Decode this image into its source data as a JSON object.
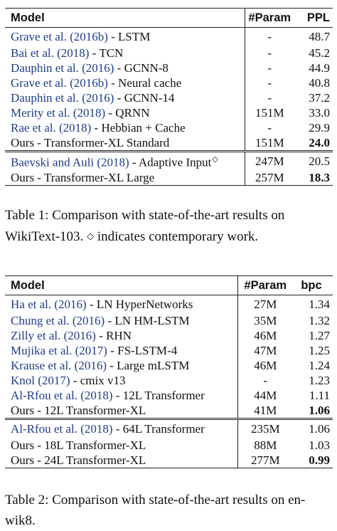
{
  "table1": {
    "headers": {
      "model": "Model",
      "param": "#Param",
      "metric": "PPL"
    },
    "group1": [
      {
        "cite": "Grave et al. (2016b)",
        "desc": " - LSTM",
        "param": "-",
        "value": "48.7"
      },
      {
        "cite": "Bai et al. (2018)",
        "desc": " - TCN",
        "param": "-",
        "value": "45.2"
      },
      {
        "cite": "Dauphin et al. (2016)",
        "desc": " - GCNN-8",
        "param": "-",
        "value": "44.9"
      },
      {
        "cite": "Grave et al. (2016b)",
        "desc": " - Neural cache",
        "param": "-",
        "value": "40.8"
      },
      {
        "cite": "Dauphin et al. (2016)",
        "desc": " - GCNN-14",
        "param": "-",
        "value": "37.2"
      },
      {
        "cite": "Merity et al. (2018)",
        "desc": " - QRNN",
        "param": "151M",
        "value": "33.0"
      },
      {
        "cite": "Rae et al. (2018)",
        "desc": " - Hebbian + Cache",
        "param": "-",
        "value": "29.9"
      },
      {
        "cite": "",
        "desc": "Ours - Transformer-XL Standard",
        "param": "151M",
        "value": "24.0",
        "bold": true
      }
    ],
    "group2": [
      {
        "cite": "Baevski and Auli (2018)",
        "desc": " - Adaptive Input",
        "mark": "◇",
        "param": "247M",
        "value": "20.5"
      },
      {
        "cite": "",
        "desc": "Ours - Transformer-XL Large",
        "param": "257M",
        "value": "18.3",
        "bold": true
      }
    ],
    "caption_a": "Table 1:  Comparison with state-of-the-art results on WikiText-103. ",
    "caption_mark": "◇",
    "caption_b": " indicates contemporary work."
  },
  "table2": {
    "headers": {
      "model": "Model",
      "param": "#Param",
      "metric": "bpc"
    },
    "group1": [
      {
        "cite": "Ha et al. (2016)",
        "desc": " - LN HyperNetworks",
        "param": "27M",
        "value": "1.34"
      },
      {
        "cite": "Chung et al. (2016)",
        "desc": " - LN HM-LSTM",
        "param": "35M",
        "value": "1.32"
      },
      {
        "cite": "Zilly et al. (2016)",
        "desc": " - RHN",
        "param": "46M",
        "value": "1.27"
      },
      {
        "cite": "Mujika et al. (2017)",
        "desc": " - FS-LSTM-4",
        "param": "47M",
        "value": "1.25"
      },
      {
        "cite": "Krause et al. (2016)",
        "desc": " - Large mLSTM",
        "param": "46M",
        "value": "1.24"
      },
      {
        "cite": "Knol (2017)",
        "desc": " - cmix v13",
        "param": "-",
        "value": "1.23"
      },
      {
        "cite": "Al-Rfou et al. (2018)",
        "desc": " - 12L Transformer",
        "param": "44M",
        "value": "1.11"
      },
      {
        "cite": "",
        "desc": "Ours - 12L Transformer-XL",
        "param": "41M",
        "value": "1.06",
        "bold": true
      }
    ],
    "group2": [
      {
        "cite": "Al-Rfou et al. (2018)",
        "desc": " - 64L Transformer",
        "param": "235M",
        "value": "1.06"
      },
      {
        "cite": "",
        "desc": "Ours - 18L Transformer-XL",
        "param": "88M",
        "value": "1.03"
      },
      {
        "cite": "",
        "desc": "Ours - 24L Transformer-XL",
        "param": "277M",
        "value": "0.99",
        "bold": true
      }
    ],
    "caption": "Table 2: Comparison with state-of-the-art results on en-wik8."
  }
}
